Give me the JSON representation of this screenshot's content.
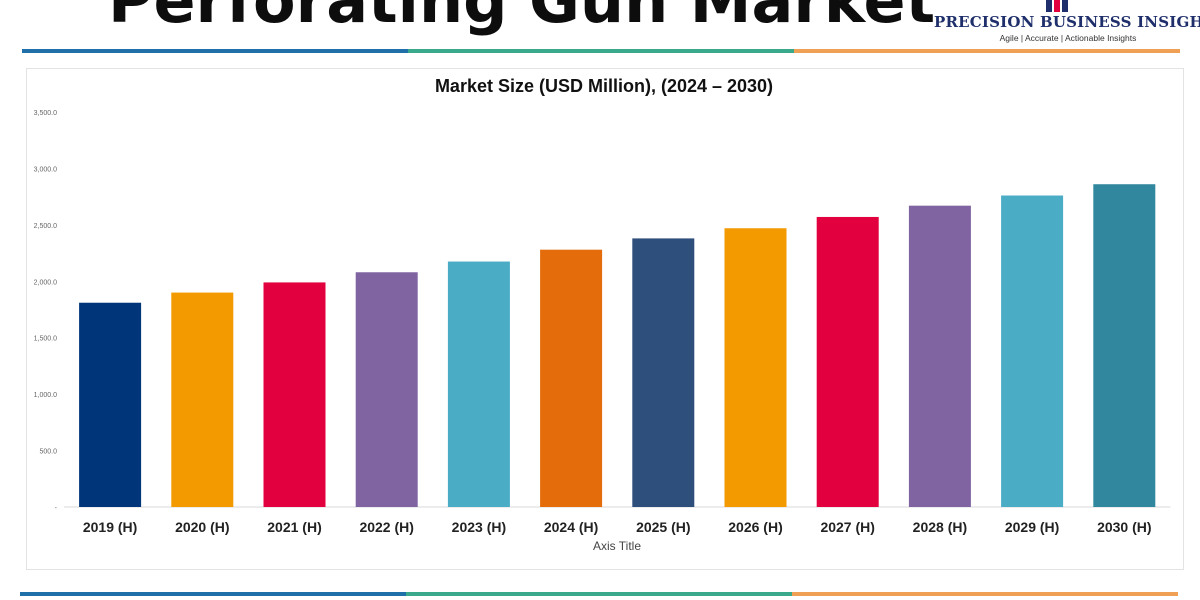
{
  "header": {
    "title": "Perforating Gun Market",
    "logo_name": "PRECISION BUSINESS INSIGHTS",
    "logo_tagline": "Agile | Accurate | Actionable Insights",
    "logo_icon": "bar-graph-logo-icon"
  },
  "colors": {
    "navy": "#00357a",
    "orange": "#f29a00",
    "red": "#e2003f",
    "purple": "#8064a2",
    "sky": "#4bacc6",
    "dark_orange": "#e46c0a",
    "slate": "#2e4e7c",
    "teal": "#30879e",
    "stripe_blue": "#1f6fa8",
    "stripe_green": "#3aa88a",
    "stripe_orange": "#f0a055"
  },
  "chart_data": {
    "type": "bar",
    "title": "Market Size (USD Million), (2024 – 2030)",
    "xlabel": "Axis Title",
    "ylabel": "",
    "ylim": [
      0,
      3500
    ],
    "yticks": [
      "-",
      "500.0",
      "1,000.0",
      "1,500.0",
      "2,000.0",
      "2,500.0",
      "3,000.0",
      "3,500.0"
    ],
    "grid": false,
    "categories": [
      "2019 (H)",
      "2020 (H)",
      "2021 (H)",
      "2022 (H)",
      "2023 (H)",
      "2024 (H)",
      "2025 (H)",
      "2026 (H)",
      "2027 (H)",
      "2028 (H)",
      "2029 (H)",
      "2030 (H)"
    ],
    "values": [
      1810,
      1900,
      1990,
      2080,
      2175,
      2280,
      2380,
      2470,
      2570,
      2670,
      2760,
      2860
    ],
    "bar_colors": [
      "#00357a",
      "#f29a00",
      "#e2003f",
      "#8064a2",
      "#4bacc6",
      "#e46c0a",
      "#2e4e7c",
      "#f29a00",
      "#e2003f",
      "#8064a2",
      "#4bacc6",
      "#30879e"
    ]
  }
}
